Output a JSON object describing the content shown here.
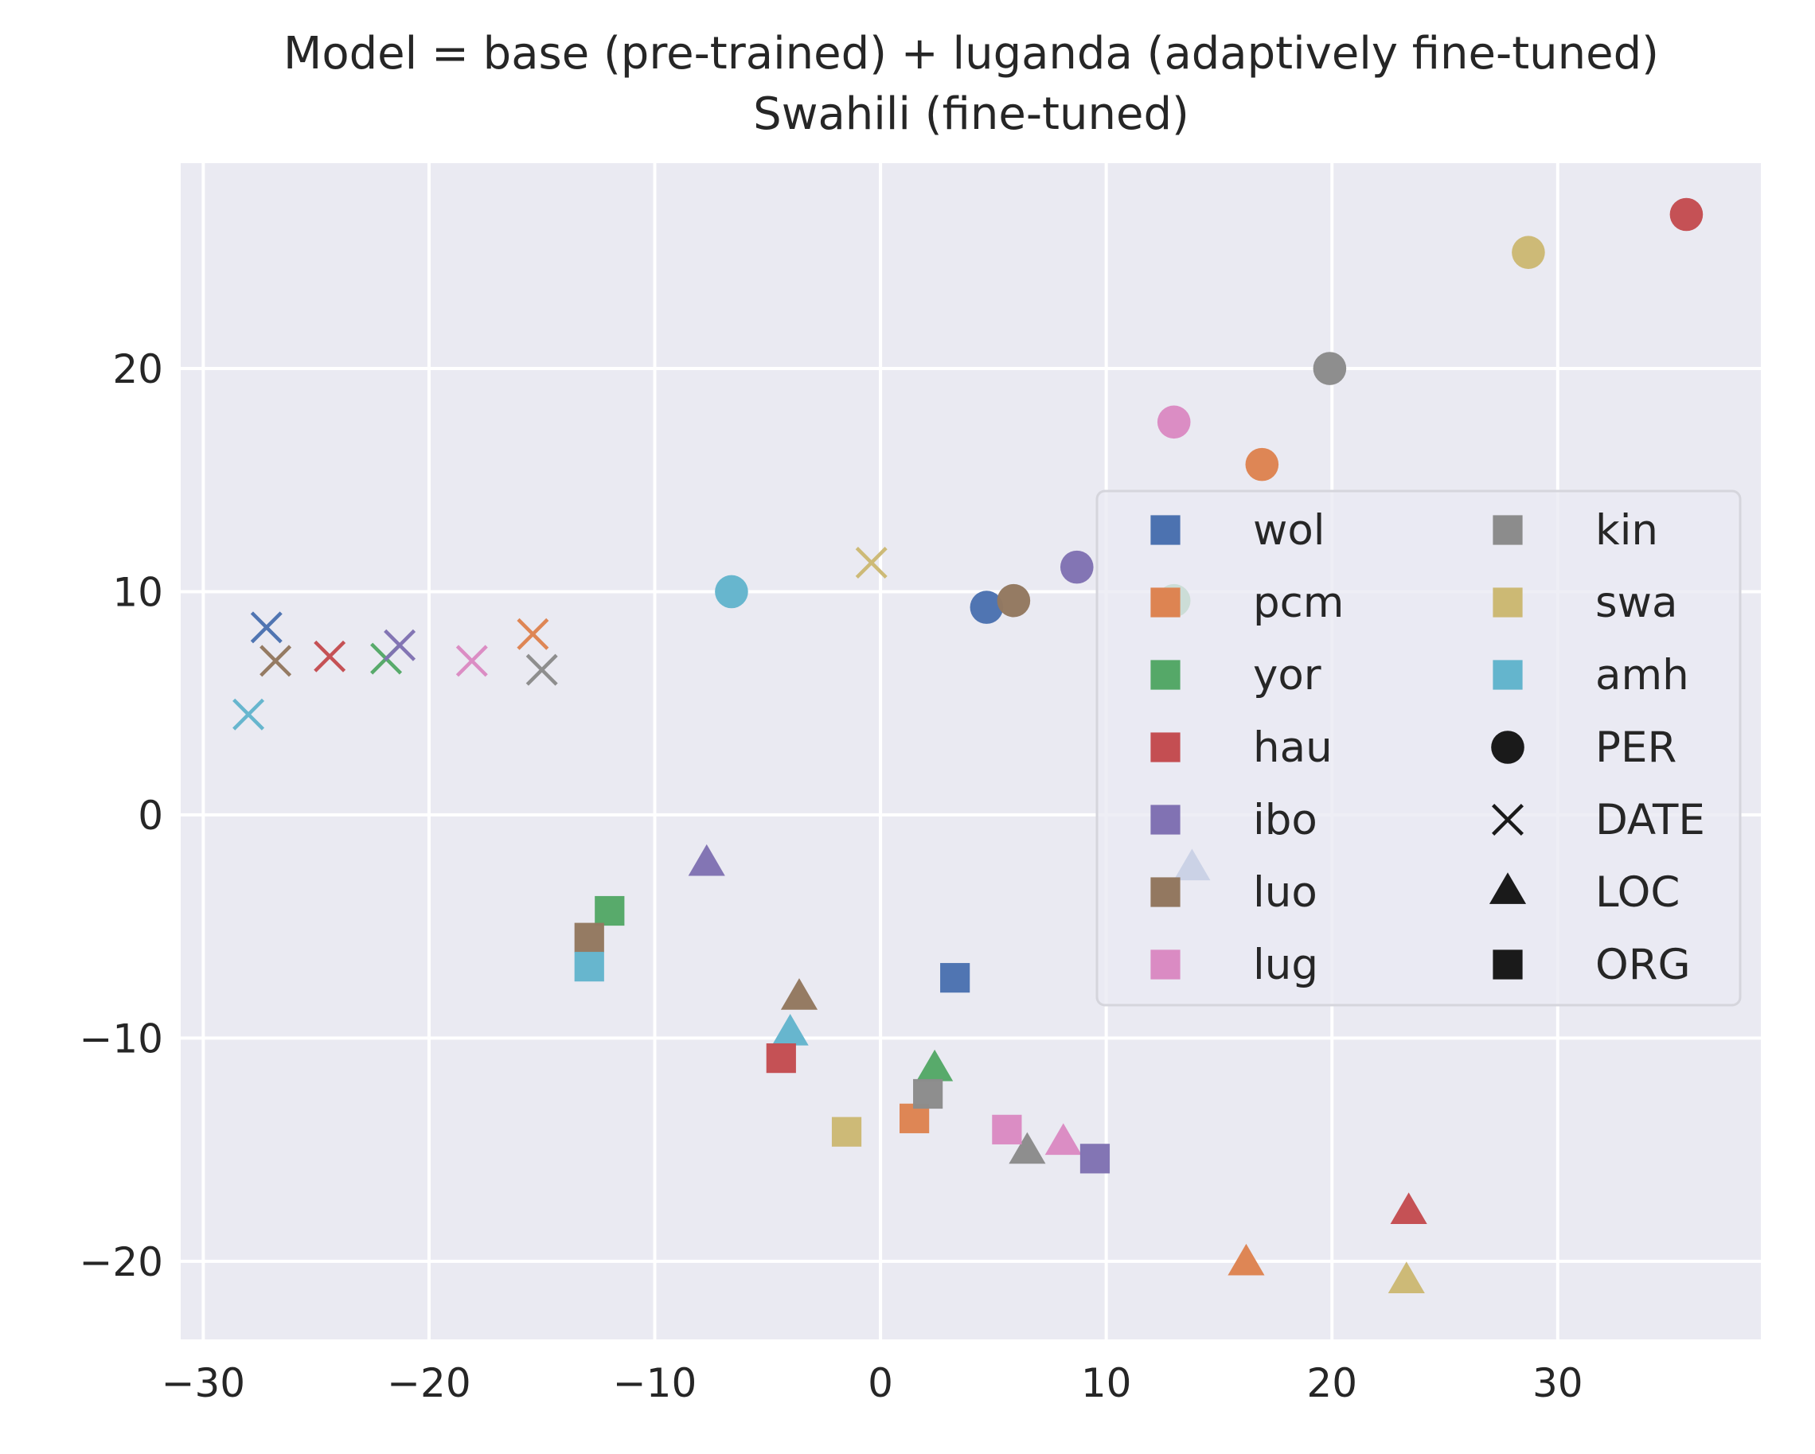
{
  "chart_data": {
    "type": "scatter",
    "title": "Model = base (pre-trained) + luganda (adaptively fine-tuned)",
    "subtitle": "Swahili (fine-tuned)",
    "xlabel": "",
    "ylabel": "",
    "xlim": [
      -31,
      39
    ],
    "ylim": [
      -23.5,
      29.2
    ],
    "xticks": [
      -30,
      -20,
      -10,
      0,
      10,
      20,
      30
    ],
    "yticks": [
      -20,
      -10,
      0,
      10,
      20
    ],
    "xtick_labels": [
      "−30",
      "−20",
      "−10",
      "0",
      "10",
      "20",
      "30"
    ],
    "ytick_labels": [
      "−20",
      "−10",
      "0",
      "10",
      "20"
    ],
    "grid": true,
    "legend_position": "center-right",
    "colors": {
      "wol": "#4c72b0",
      "pcm": "#dd8452",
      "yor": "#55a868",
      "hau": "#c44e52",
      "ibo": "#8172b3",
      "luo": "#937860",
      "lug": "#da8bc3",
      "kin": "#8c8c8c",
      "swa": "#ccb974",
      "amh": "#64b5cd"
    },
    "legend": {
      "languages": [
        "wol",
        "pcm",
        "yor",
        "hau",
        "ibo",
        "luo",
        "lug",
        "kin",
        "swa",
        "amh"
      ],
      "markers": [
        {
          "label": "PER",
          "marker": "circle"
        },
        {
          "label": "DATE",
          "marker": "x"
        },
        {
          "label": "LOC",
          "marker": "triangle"
        },
        {
          "label": "ORG",
          "marker": "square"
        }
      ]
    },
    "points": [
      {
        "lang": "wol",
        "type": "PER",
        "x": 4.7,
        "y": 9.3
      },
      {
        "lang": "pcm",
        "type": "PER",
        "x": 16.9,
        "y": 15.7
      },
      {
        "lang": "yor",
        "type": "PER",
        "x": 13.0,
        "y": 9.6
      },
      {
        "lang": "hau",
        "type": "PER",
        "x": 35.7,
        "y": 26.9
      },
      {
        "lang": "ibo",
        "type": "PER",
        "x": 8.7,
        "y": 11.1
      },
      {
        "lang": "luo",
        "type": "PER",
        "x": 5.9,
        "y": 9.6
      },
      {
        "lang": "lug",
        "type": "PER",
        "x": 13.0,
        "y": 17.6
      },
      {
        "lang": "kin",
        "type": "PER",
        "x": 19.9,
        "y": 20.0
      },
      {
        "lang": "swa",
        "type": "PER",
        "x": 28.7,
        "y": 25.2
      },
      {
        "lang": "amh",
        "type": "PER",
        "x": -6.6,
        "y": 10.0
      },
      {
        "lang": "wol",
        "type": "DATE",
        "x": -27.2,
        "y": 8.4
      },
      {
        "lang": "pcm",
        "type": "DATE",
        "x": -15.4,
        "y": 8.1
      },
      {
        "lang": "yor",
        "type": "DATE",
        "x": -21.9,
        "y": 7.0
      },
      {
        "lang": "hau",
        "type": "DATE",
        "x": -24.4,
        "y": 7.1
      },
      {
        "lang": "ibo",
        "type": "DATE",
        "x": -21.3,
        "y": 7.6
      },
      {
        "lang": "luo",
        "type": "DATE",
        "x": -26.8,
        "y": 6.9
      },
      {
        "lang": "lug",
        "type": "DATE",
        "x": -18.1,
        "y": 6.9
      },
      {
        "lang": "kin",
        "type": "DATE",
        "x": -15.0,
        "y": 6.5
      },
      {
        "lang": "swa",
        "type": "DATE",
        "x": -0.4,
        "y": 11.3
      },
      {
        "lang": "amh",
        "type": "DATE",
        "x": -28.0,
        "y": 4.5
      },
      {
        "lang": "wol",
        "type": "LOC",
        "x": 13.8,
        "y": -2.4
      },
      {
        "lang": "pcm",
        "type": "LOC",
        "x": 16.2,
        "y": -20.1
      },
      {
        "lang": "yor",
        "type": "LOC",
        "x": 2.4,
        "y": -11.4
      },
      {
        "lang": "hau",
        "type": "LOC",
        "x": 23.4,
        "y": -17.8
      },
      {
        "lang": "ibo",
        "type": "LOC",
        "x": -7.7,
        "y": -2.2
      },
      {
        "lang": "luo",
        "type": "LOC",
        "x": -3.6,
        "y": -8.2
      },
      {
        "lang": "lug",
        "type": "LOC",
        "x": 8.1,
        "y": -14.7
      },
      {
        "lang": "kin",
        "type": "LOC",
        "x": 6.5,
        "y": -15.1
      },
      {
        "lang": "swa",
        "type": "LOC",
        "x": 23.3,
        "y": -20.9
      },
      {
        "lang": "amh",
        "type": "LOC",
        "x": -4.0,
        "y": -9.8
      },
      {
        "lang": "wol",
        "type": "ORG",
        "x": 3.3,
        "y": -7.3
      },
      {
        "lang": "pcm",
        "type": "ORG",
        "x": 1.5,
        "y": -13.6
      },
      {
        "lang": "yor",
        "type": "ORG",
        "x": -12.0,
        "y": -4.3
      },
      {
        "lang": "hau",
        "type": "ORG",
        "x": -4.4,
        "y": -10.9
      },
      {
        "lang": "ibo",
        "type": "ORG",
        "x": 9.5,
        "y": -15.4
      },
      {
        "lang": "luo",
        "type": "ORG",
        "x": -12.9,
        "y": -5.5
      },
      {
        "lang": "lug",
        "type": "ORG",
        "x": 5.6,
        "y": -14.1
      },
      {
        "lang": "kin",
        "type": "ORG",
        "x": 2.1,
        "y": -12.5
      },
      {
        "lang": "swa",
        "type": "ORG",
        "x": -1.5,
        "y": -14.2
      },
      {
        "lang": "amh",
        "type": "ORG",
        "x": -12.9,
        "y": -6.8
      }
    ]
  }
}
